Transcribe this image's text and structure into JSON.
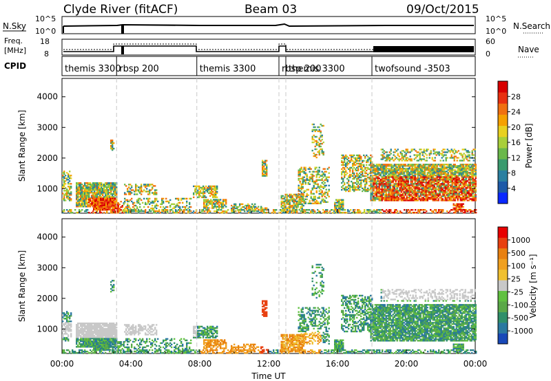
{
  "header": {
    "station": "Clyde River (fitACF)",
    "beam": "Beam 03",
    "date": "09/Oct/2015"
  },
  "colors": {
    "dashed_line": "#c8c8c8"
  },
  "nsky_panel": {
    "label": "N.Sky",
    "right_label": "N.Search",
    "left_ticks": [
      "10^5",
      "10^0"
    ],
    "right_ticks": [
      "10^5",
      "10^0"
    ]
  },
  "freq_panel": {
    "label_line1": "Freq.",
    "label_line2": "[MHz]",
    "left_ticks": [
      "18",
      "8"
    ],
    "right_label": "Nave",
    "right_ticks": [
      "60",
      "0"
    ]
  },
  "cpid_panel": {
    "label": "CPID",
    "segments": [
      {
        "start": 0.0,
        "end": 3.17,
        "name": "themis 3300"
      },
      {
        "start": 3.17,
        "end": 7.83,
        "name": "rbsp 200"
      },
      {
        "start": 7.83,
        "end": 12.6,
        "name": "themis 3300"
      },
      {
        "start": 12.6,
        "end": 13.0,
        "name": "rbsp 200"
      },
      {
        "start": 13.0,
        "end": 18.0,
        "name": "themis 3300"
      },
      {
        "start": 18.0,
        "end": 24.0,
        "name": "twofsound -3503"
      }
    ]
  },
  "chart_data": [
    {
      "type": "heatmap",
      "title": "Power",
      "ylabel": "Slant Range [km]",
      "yticks": [
        "1000",
        "2000",
        "3000",
        "4000"
      ],
      "ylim": [
        200,
        4600
      ],
      "xlim": [
        0,
        24
      ],
      "colorbar": {
        "label": "Power [dB]",
        "ticks": [
          "4",
          "8",
          "12",
          "16",
          "20",
          "24",
          "28"
        ],
        "colors": [
          "#0a28ff",
          "#1e5aa8",
          "#2a7fa0",
          "#3a9a6e",
          "#6ab84a",
          "#a8cf3a",
          "#e8d020",
          "#f5a000",
          "#f07010",
          "#e83010",
          "#d80000"
        ]
      }
    },
    {
      "type": "heatmap",
      "title": "Velocity",
      "ylabel": "Slant Range [km]",
      "yticks": [
        "1000",
        "2000",
        "3000",
        "4000"
      ],
      "ylim": [
        200,
        4600
      ],
      "xlim": [
        0,
        24
      ],
      "xlabel": "Time UT",
      "xticks": [
        "00:00",
        "04:00",
        "08:00",
        "12:00",
        "16:00",
        "20:00",
        "00:00"
      ],
      "colorbar": {
        "label": "Velocity [m s⁻¹]",
        "ticks": [
          "1000",
          "500",
          "100",
          "25",
          "-25",
          "-100",
          "-500",
          "-1000"
        ],
        "colors": [
          "#1848b8",
          "#2a78a0",
          "#2f8f6a",
          "#5aa848",
          "#60c040",
          "#c8c8c8",
          "#f0c030",
          "#f0a020",
          "#e88010",
          "#e84010",
          "#e80000"
        ]
      }
    }
  ]
}
